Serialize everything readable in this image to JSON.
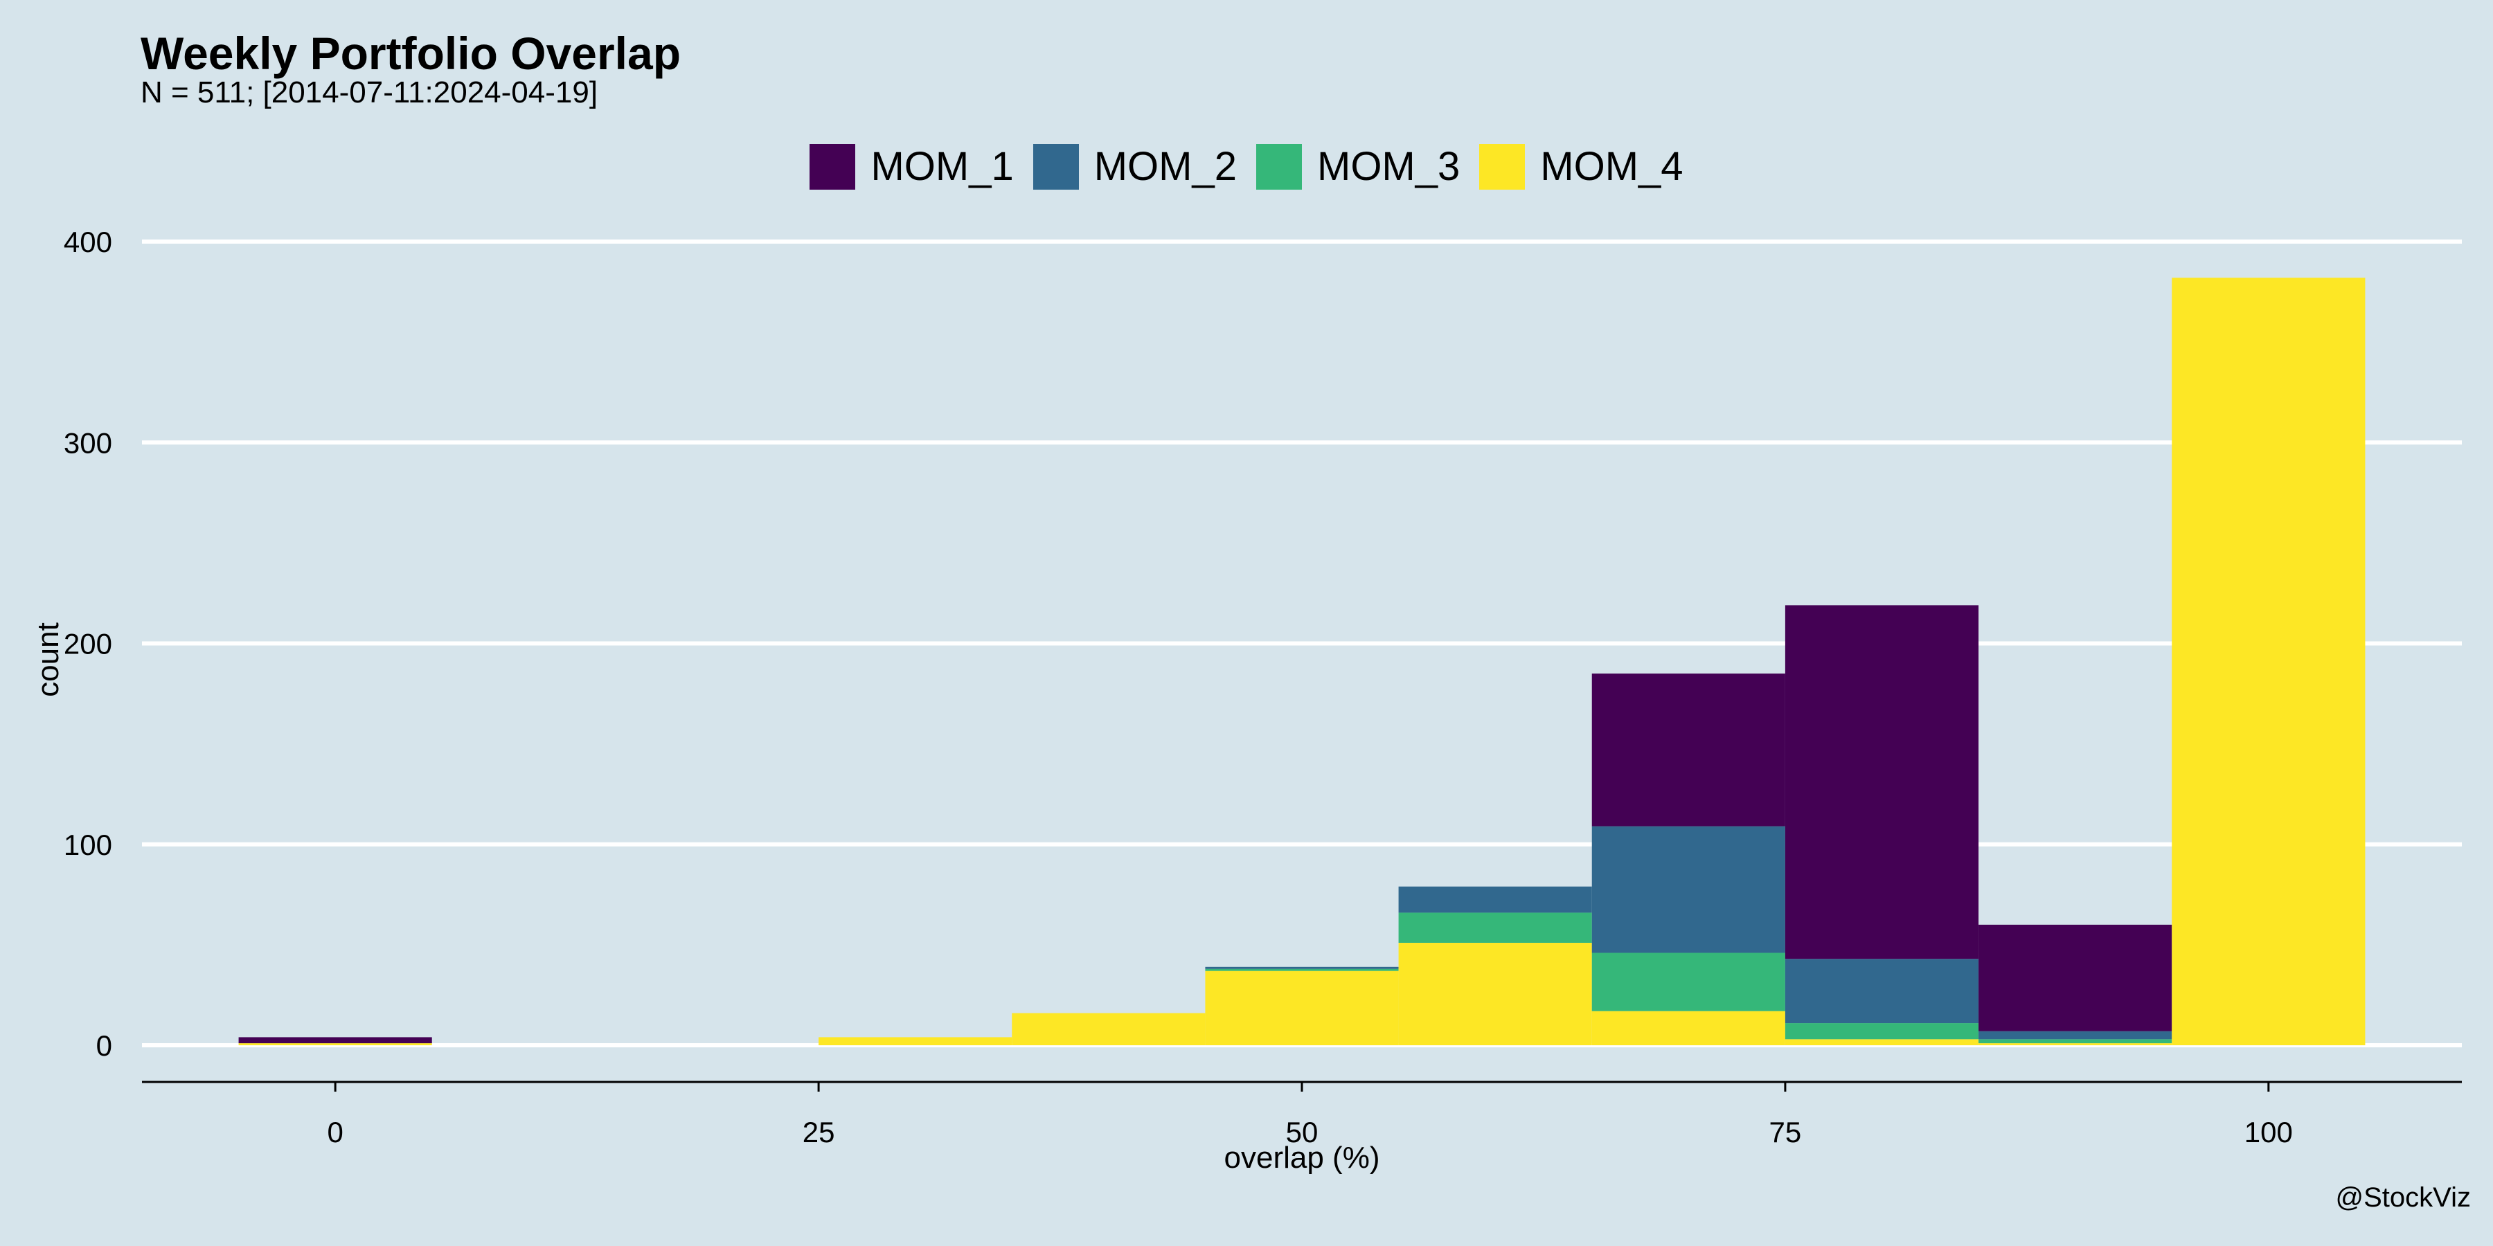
{
  "chart_data": {
    "type": "bar",
    "stacked": true,
    "title": "Weekly Portfolio Overlap",
    "subtitle": "N = 511; [2014-07-11:2024-04-19]",
    "xlabel": "overlap (%)",
    "ylabel": "count",
    "xlim": [
      -10,
      110
    ],
    "ylim": [
      0,
      400
    ],
    "x_ticks": [
      0,
      25,
      50,
      75,
      100
    ],
    "y_ticks": [
      0,
      100,
      200,
      300,
      400
    ],
    "grid": "horizontal",
    "legend_position": "top",
    "bin_width": 10,
    "bin_centers": [
      0,
      10,
      20,
      30,
      40,
      50,
      60,
      70,
      80,
      90,
      100
    ],
    "series": [
      {
        "name": "MOM_1",
        "color": "#440154",
        "values": [
          3,
          0,
          0,
          0,
          0,
          0,
          0,
          76,
          176,
          53,
          0
        ]
      },
      {
        "name": "MOM_2",
        "color": "#31688e",
        "values": [
          0,
          0,
          0,
          0,
          0,
          1,
          13,
          63,
          32,
          4,
          0
        ]
      },
      {
        "name": "MOM_3",
        "color": "#35b779",
        "values": [
          0,
          0,
          0,
          0,
          0,
          1,
          15,
          29,
          8,
          2,
          0
        ]
      },
      {
        "name": "MOM_4",
        "color": "#fde725",
        "values": [
          1,
          0,
          0,
          4,
          16,
          37,
          51,
          17,
          3,
          1,
          382
        ]
      }
    ],
    "credit": "@StockViz"
  }
}
